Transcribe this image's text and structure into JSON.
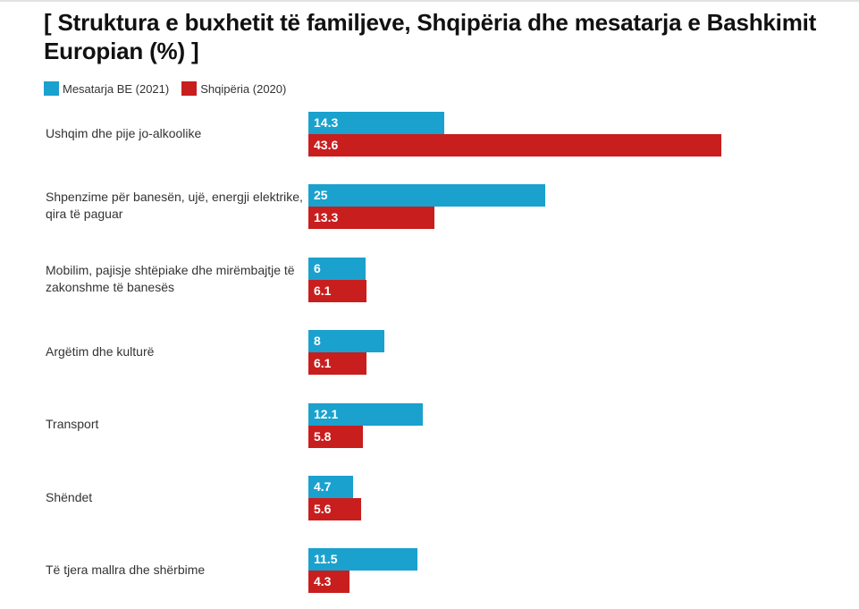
{
  "chart_data": {
    "type": "bar",
    "orientation": "horizontal",
    "title": "[ Struktura e buxhetit të familjeve, Shqipëria dhe mesatarja e Bashkimit Europian (%) ]",
    "xlabel": "",
    "ylabel": "",
    "xlim": [
      0,
      43.6
    ],
    "grid": false,
    "legend_position": "top-left",
    "categories": [
      "Ushqim dhe pije jo-alkoolike",
      "Shpenzime për banesën, ujë, energji elektrike, qira të paguar",
      "Mobilim, pajisje shtëpiake dhe mirëmbajtje të zakonshme të banesës",
      "Argëtim dhe kulturë",
      "Transport",
      "Shëndet",
      "Të tjera mallra dhe shërbime"
    ],
    "series": [
      {
        "name": "Mesatarja BE (2021)",
        "color": "#1aa1ce",
        "values": [
          14.3,
          25,
          6,
          8,
          12.1,
          4.7,
          11.5
        ]
      },
      {
        "name": "Shqipëria (2020)",
        "color": "#c81e1e",
        "values": [
          43.6,
          13.3,
          6.1,
          6.1,
          5.8,
          5.6,
          4.3
        ]
      }
    ]
  }
}
